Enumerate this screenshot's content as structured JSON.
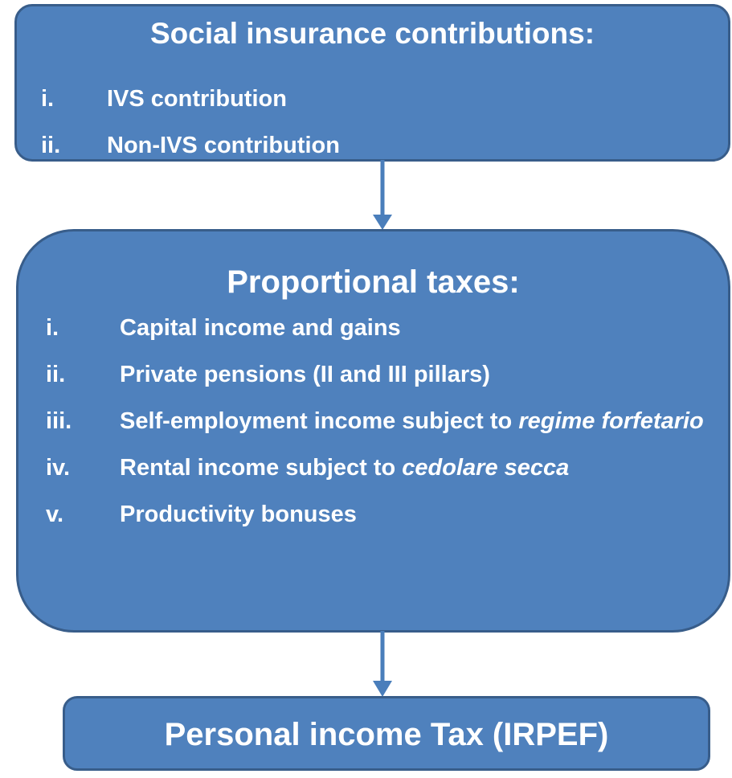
{
  "nodes": [
    {
      "title": "Social insurance contributions:",
      "items": [
        {
          "marker": "i.",
          "text": "IVS contribution"
        },
        {
          "marker": "ii.",
          "text": "Non-IVS contribution"
        }
      ]
    },
    {
      "title": "Proportional taxes:",
      "items": [
        {
          "marker": "i.",
          "text": "Capital income and gains"
        },
        {
          "marker": "ii.",
          "text": "Private pensions (II and III pillars)"
        },
        {
          "marker": "iii.",
          "text": "Self-employment income subject to",
          "emphasis": "regime forfetario"
        },
        {
          "marker": "iv.",
          "text": "Rental income subject to",
          "emphasis": "cedolare secca"
        },
        {
          "marker": "v.",
          "text": "Productivity bonuses"
        }
      ]
    },
    {
      "title": "Personal income Tax (IRPEF)"
    }
  ]
}
